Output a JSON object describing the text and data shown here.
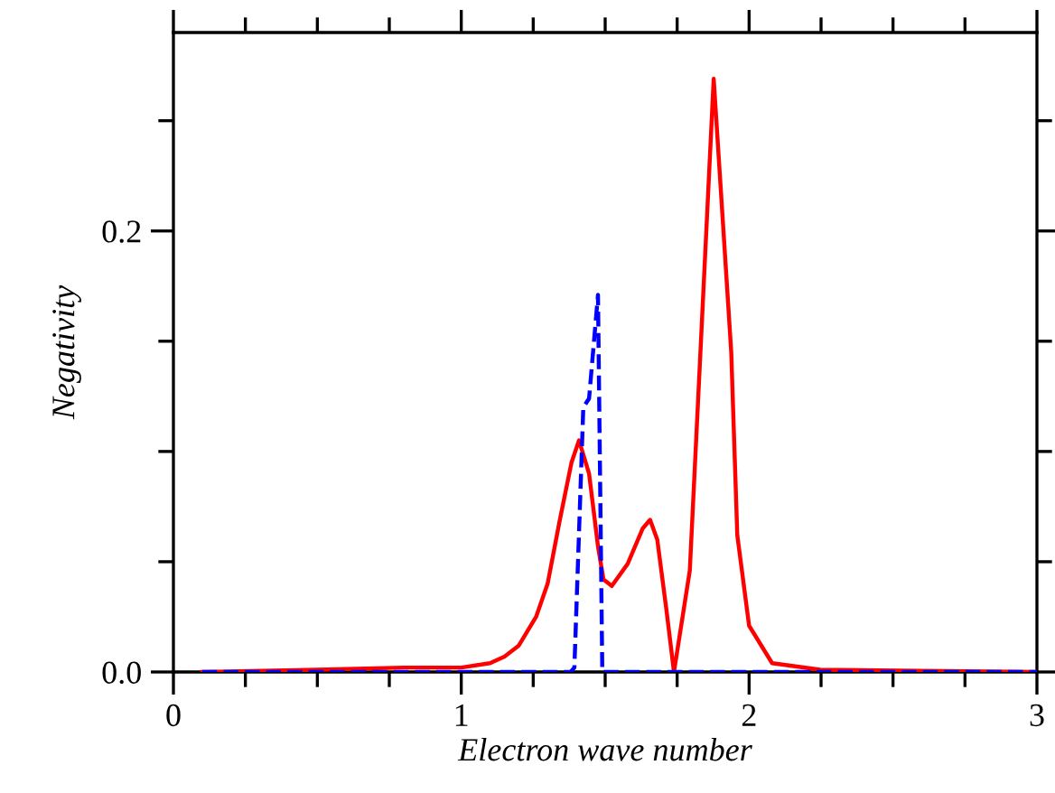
{
  "chart_data": {
    "type": "line",
    "xlabel": "Electron wave number",
    "ylabel": "Negativity",
    "xlim": [
      0,
      3
    ],
    "ylim": [
      0,
      0.29
    ],
    "xticks": [
      0,
      {
        "value": 0.25,
        "label": null
      },
      {
        "value": 0.5,
        "label": null
      },
      {
        "value": 0.75,
        "label": null
      },
      1,
      {
        "value": 1.25,
        "label": null
      },
      {
        "value": 1.5,
        "label": null
      },
      {
        "value": 1.75,
        "label": null
      },
      2,
      {
        "value": 2.25,
        "label": null
      },
      {
        "value": 2.5,
        "label": null
      },
      {
        "value": 2.75,
        "label": null
      },
      3
    ],
    "yticks": [
      {
        "value": 0,
        "label": "0.0"
      },
      {
        "value": 0.05,
        "label": null
      },
      {
        "value": 0.1,
        "label": null
      },
      {
        "value": 0.15,
        "label": null
      },
      {
        "value": 0.2,
        "label": "0.2"
      },
      {
        "value": 0.25,
        "label": null
      }
    ],
    "grid": false,
    "legend": false,
    "series": [
      {
        "color": "#ff0000",
        "line_style": "solid",
        "x": [
          0.1,
          0.5,
          0.8,
          1.0,
          1.1,
          1.15,
          1.2,
          1.26,
          1.3,
          1.341,
          1.383,
          1.409,
          1.444,
          1.475,
          1.494,
          1.523,
          1.578,
          1.63,
          1.656,
          1.681,
          1.712,
          1.739,
          1.794,
          1.835,
          1.877,
          1.938,
          1.959,
          2.0,
          2.08,
          2.247,
          3.0
        ],
        "values": [
          0.0,
          0.001,
          0.002,
          0.002,
          0.004,
          0.007,
          0.012,
          0.025,
          0.04,
          0.068,
          0.095,
          0.105,
          0.09,
          0.057,
          0.042,
          0.039,
          0.049,
          0.065,
          0.069,
          0.06,
          0.029,
          0.0,
          0.046,
          0.156,
          0.269,
          0.145,
          0.062,
          0.021,
          0.004,
          0.001,
          0.0
        ]
      },
      {
        "color": "#0000ff",
        "line_style": "dashed",
        "x": [
          0.1,
          1.38,
          1.393,
          1.424,
          1.444,
          1.475,
          1.49,
          3.0
        ],
        "values": [
          0.0,
          0.0,
          0.002,
          0.12,
          0.124,
          0.171,
          0.0,
          0.0
        ]
      }
    ]
  }
}
